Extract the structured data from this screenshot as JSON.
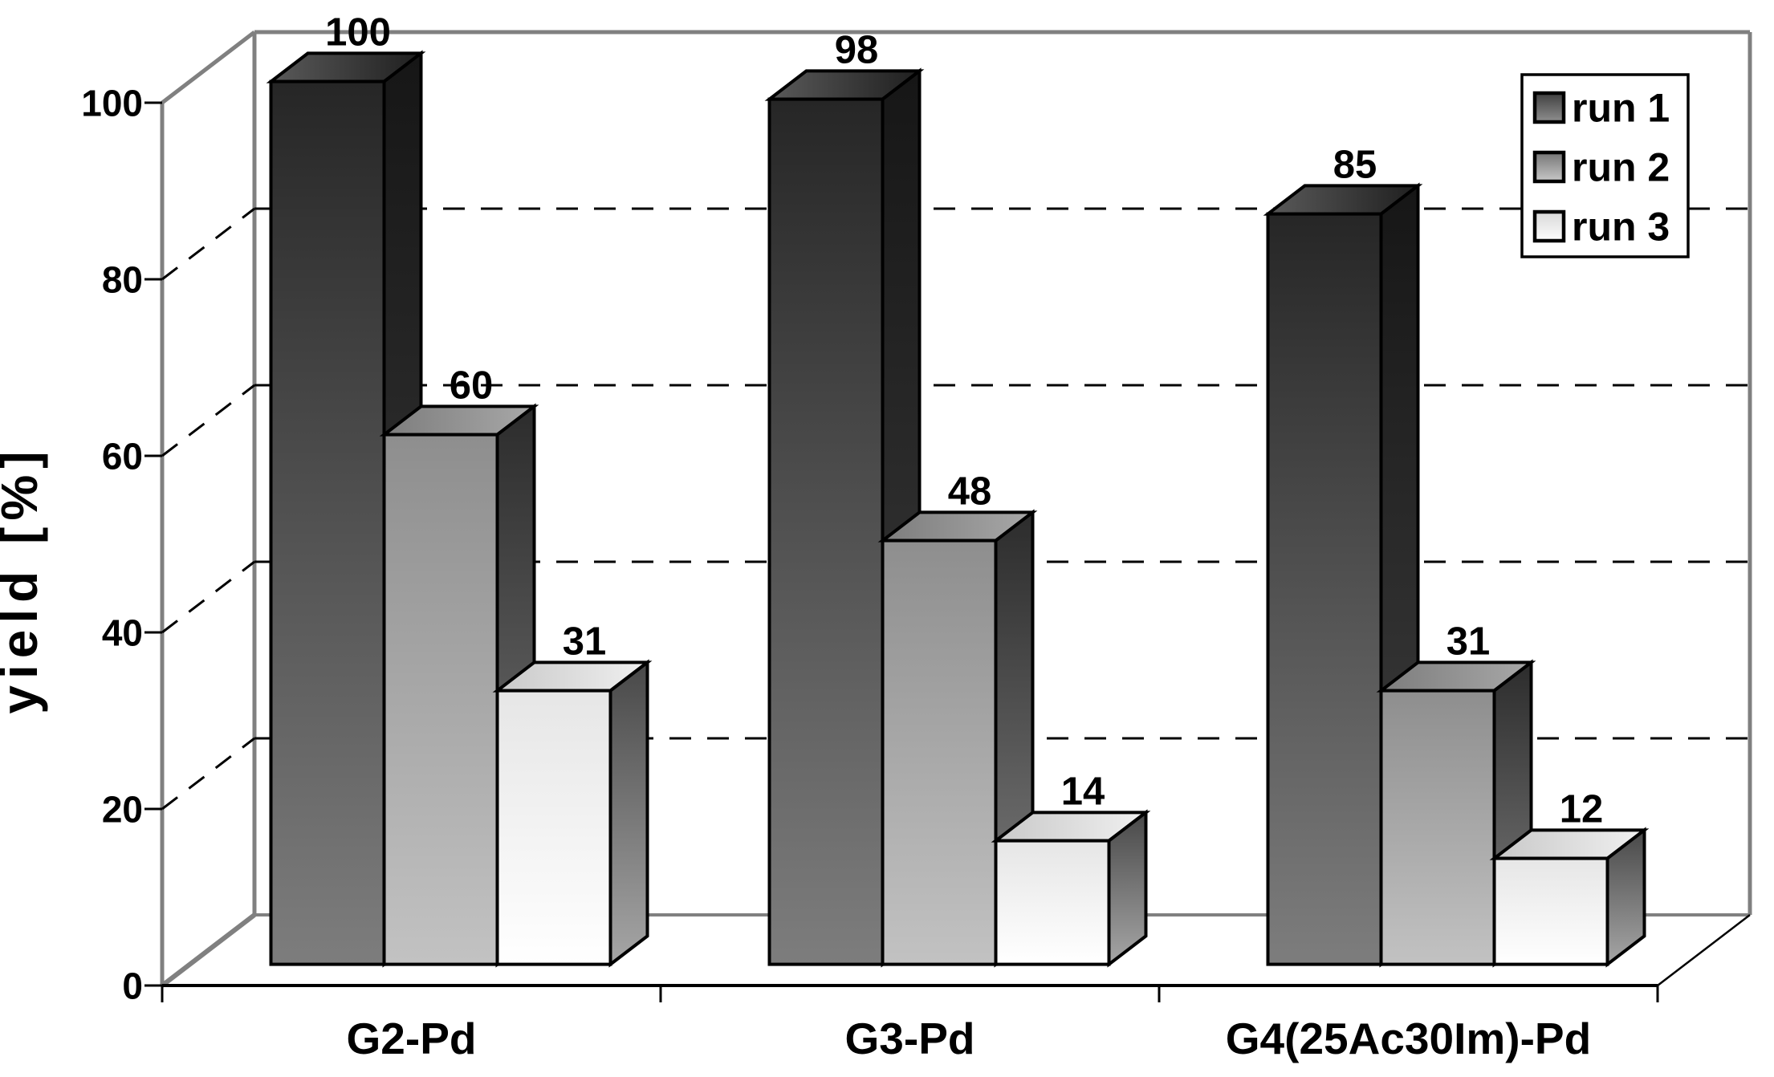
{
  "chart_data": {
    "type": "bar",
    "projection": "3d",
    "title": "",
    "ylabel": "yield [%]",
    "categories": [
      "G2-Pd",
      "G3-Pd",
      "G4(25Ac30Im)-Pd"
    ],
    "series": [
      {
        "name": "run 1",
        "values": [
          100,
          98,
          85
        ],
        "front": [
          "#262626",
          "#7d7d7d"
        ],
        "top": [
          "#5a5a5a",
          "#1f1f1f"
        ],
        "side": [
          "#161616",
          "#424242"
        ],
        "swatch": [
          "#3f3f3f",
          "#8f8f8f"
        ]
      },
      {
        "name": "run 2",
        "values": [
          60,
          48,
          31
        ],
        "front": [
          "#8e8e8e",
          "#c2c2c2"
        ],
        "top": [
          "#7d7d7d",
          "#a8a8a8"
        ],
        "side": [
          "#2c2c2c",
          "#808080"
        ],
        "swatch": [
          "#757575",
          "#c8c8c8"
        ]
      },
      {
        "name": "run 3",
        "values": [
          31,
          14,
          12
        ],
        "front": [
          "#e6e6e6",
          "#ffffff"
        ],
        "top": [
          "#c9c9c9",
          "#f0f0f0"
        ],
        "side": [
          "#484848",
          "#a6a6a6"
        ],
        "swatch": [
          "#d8d8d8",
          "#fcfcfc"
        ]
      }
    ],
    "yticks": [
      0,
      20,
      40,
      60,
      80,
      100
    ],
    "ylim": [
      0,
      100
    ],
    "grid": "dashed-horizontal",
    "legend_position": "top-right",
    "legend_labels": [
      "run 1",
      "run 2",
      "run 3"
    ],
    "colors": {
      "frame_gray": "#808080",
      "axis_black": "#000000",
      "background": "#ffffff",
      "gridline": "#000000",
      "legend_border": "#000000",
      "legend_background": "#ffffff"
    }
  }
}
